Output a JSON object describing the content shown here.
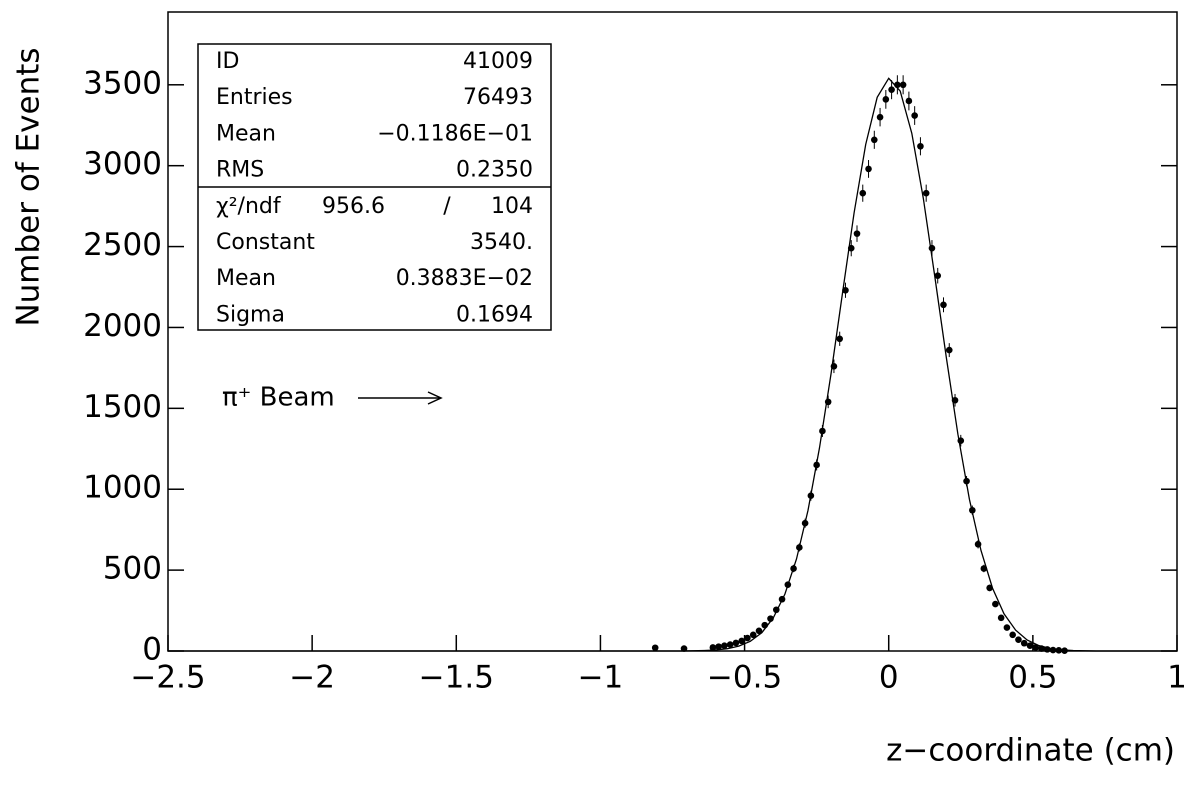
{
  "chart_data": {
    "type": "scatter",
    "xlabel": "z−coordinate (cm)",
    "ylabel": "Number of Events",
    "annotation": "π⁺ Beam",
    "xlim": [
      -2.5,
      1
    ],
    "ylim": [
      0,
      3950
    ],
    "xticks": [
      {
        "value": -2.5,
        "label": "−2.5"
      },
      {
        "value": -2,
        "label": "−2"
      },
      {
        "value": -1.5,
        "label": "−1.5"
      },
      {
        "value": -1,
        "label": "−1"
      },
      {
        "value": -0.5,
        "label": "−0.5"
      },
      0,
      0.5,
      1
    ],
    "yticks": [
      0,
      500,
      1000,
      1500,
      2000,
      2500,
      3000,
      3500
    ],
    "color": "#000000",
    "x": [
      -0.81,
      -0.71,
      -0.61,
      -0.59,
      -0.57,
      -0.55,
      -0.53,
      -0.51,
      -0.49,
      -0.47,
      -0.45,
      -0.43,
      -0.41,
      -0.39,
      -0.37,
      -0.35,
      -0.33,
      -0.31,
      -0.29,
      -0.27,
      -0.25,
      -0.23,
      -0.21,
      -0.19,
      -0.17,
      -0.15,
      -0.13,
      -0.11,
      -0.09,
      -0.07,
      -0.05,
      -0.03,
      -0.01,
      0.01,
      0.03,
      0.05,
      0.07,
      0.09,
      0.11,
      0.13,
      0.15,
      0.17,
      0.19,
      0.21,
      0.23,
      0.25,
      0.27,
      0.29,
      0.31,
      0.33,
      0.35,
      0.37,
      0.39,
      0.41,
      0.43,
      0.45,
      0.47,
      0.49,
      0.51,
      0.53,
      0.55,
      0.57,
      0.59,
      0.61
    ],
    "values": [
      20,
      15,
      22,
      27,
      33,
      40,
      50,
      62,
      80,
      100,
      125,
      160,
      200,
      255,
      320,
      410,
      510,
      640,
      790,
      960,
      1150,
      1360,
      1540,
      1760,
      1930,
      2230,
      2490,
      2580,
      2830,
      2980,
      3160,
      3300,
      3410,
      3470,
      3500,
      3500,
      3400,
      3310,
      3120,
      2830,
      2490,
      2320,
      2140,
      1860,
      1550,
      1300,
      1050,
      870,
      660,
      510,
      390,
      290,
      205,
      145,
      100,
      70,
      48,
      33,
      22,
      15,
      10,
      6,
      4,
      2
    ],
    "errors": [
      4,
      4,
      5,
      5,
      6,
      6,
      7,
      8,
      9,
      10,
      11,
      13,
      14,
      16,
      18,
      20,
      23,
      25,
      28,
      31,
      34,
      37,
      39,
      42,
      44,
      47,
      50,
      51,
      53,
      55,
      56,
      57,
      58,
      59,
      59,
      59,
      58,
      58,
      56,
      53,
      50,
      48,
      46,
      43,
      39,
      36,
      32,
      29,
      26,
      23,
      20,
      17,
      14,
      12,
      10,
      8,
      7,
      6,
      5,
      4,
      3,
      2,
      2,
      1
    ],
    "fit": {
      "x": [
        -2.5,
        -0.72,
        -0.68,
        -0.64,
        -0.6,
        -0.56,
        -0.52,
        -0.48,
        -0.44,
        -0.4,
        -0.36,
        -0.32,
        -0.28,
        -0.24,
        -0.2,
        -0.16,
        -0.12,
        -0.08,
        -0.04,
        0,
        0.04,
        0.08,
        0.12,
        0.16,
        0.2,
        0.24,
        0.28,
        0.32,
        0.36,
        0.4,
        0.44,
        0.48,
        0.52,
        0.56,
        0.6,
        0.64,
        0.68,
        0.72,
        1
      ],
      "values": [
        0,
        0,
        1,
        3,
        6,
        14,
        30,
        60,
        114,
        206,
        352,
        569,
        869,
        1256,
        1716,
        2217,
        2709,
        3131,
        3423,
        3540,
        3461,
        3200,
        2799,
        2315,
        1811,
        1340,
        938,
        621,
        389,
        230,
        129,
        68,
        34,
        16,
        7,
        3,
        1,
        0,
        0
      ]
    },
    "stats": [
      {
        "label": "ID",
        "value": "41009"
      },
      {
        "label": "Entries",
        "value": "76493"
      },
      {
        "label": "Mean",
        "value": "−0.1186E−01"
      },
      {
        "label": "RMS",
        "value": "0.2350"
      }
    ],
    "fit_stats": {
      "chi2": {
        "label": "χ²/ndf",
        "value": "956.6",
        "sep": "/",
        "ndf": "104"
      },
      "rows": [
        {
          "label": "Constant",
          "value": "3540."
        },
        {
          "label": "Mean",
          "value": "0.3883E−02"
        },
        {
          "label": "Sigma",
          "value": "0.1694"
        }
      ]
    }
  }
}
